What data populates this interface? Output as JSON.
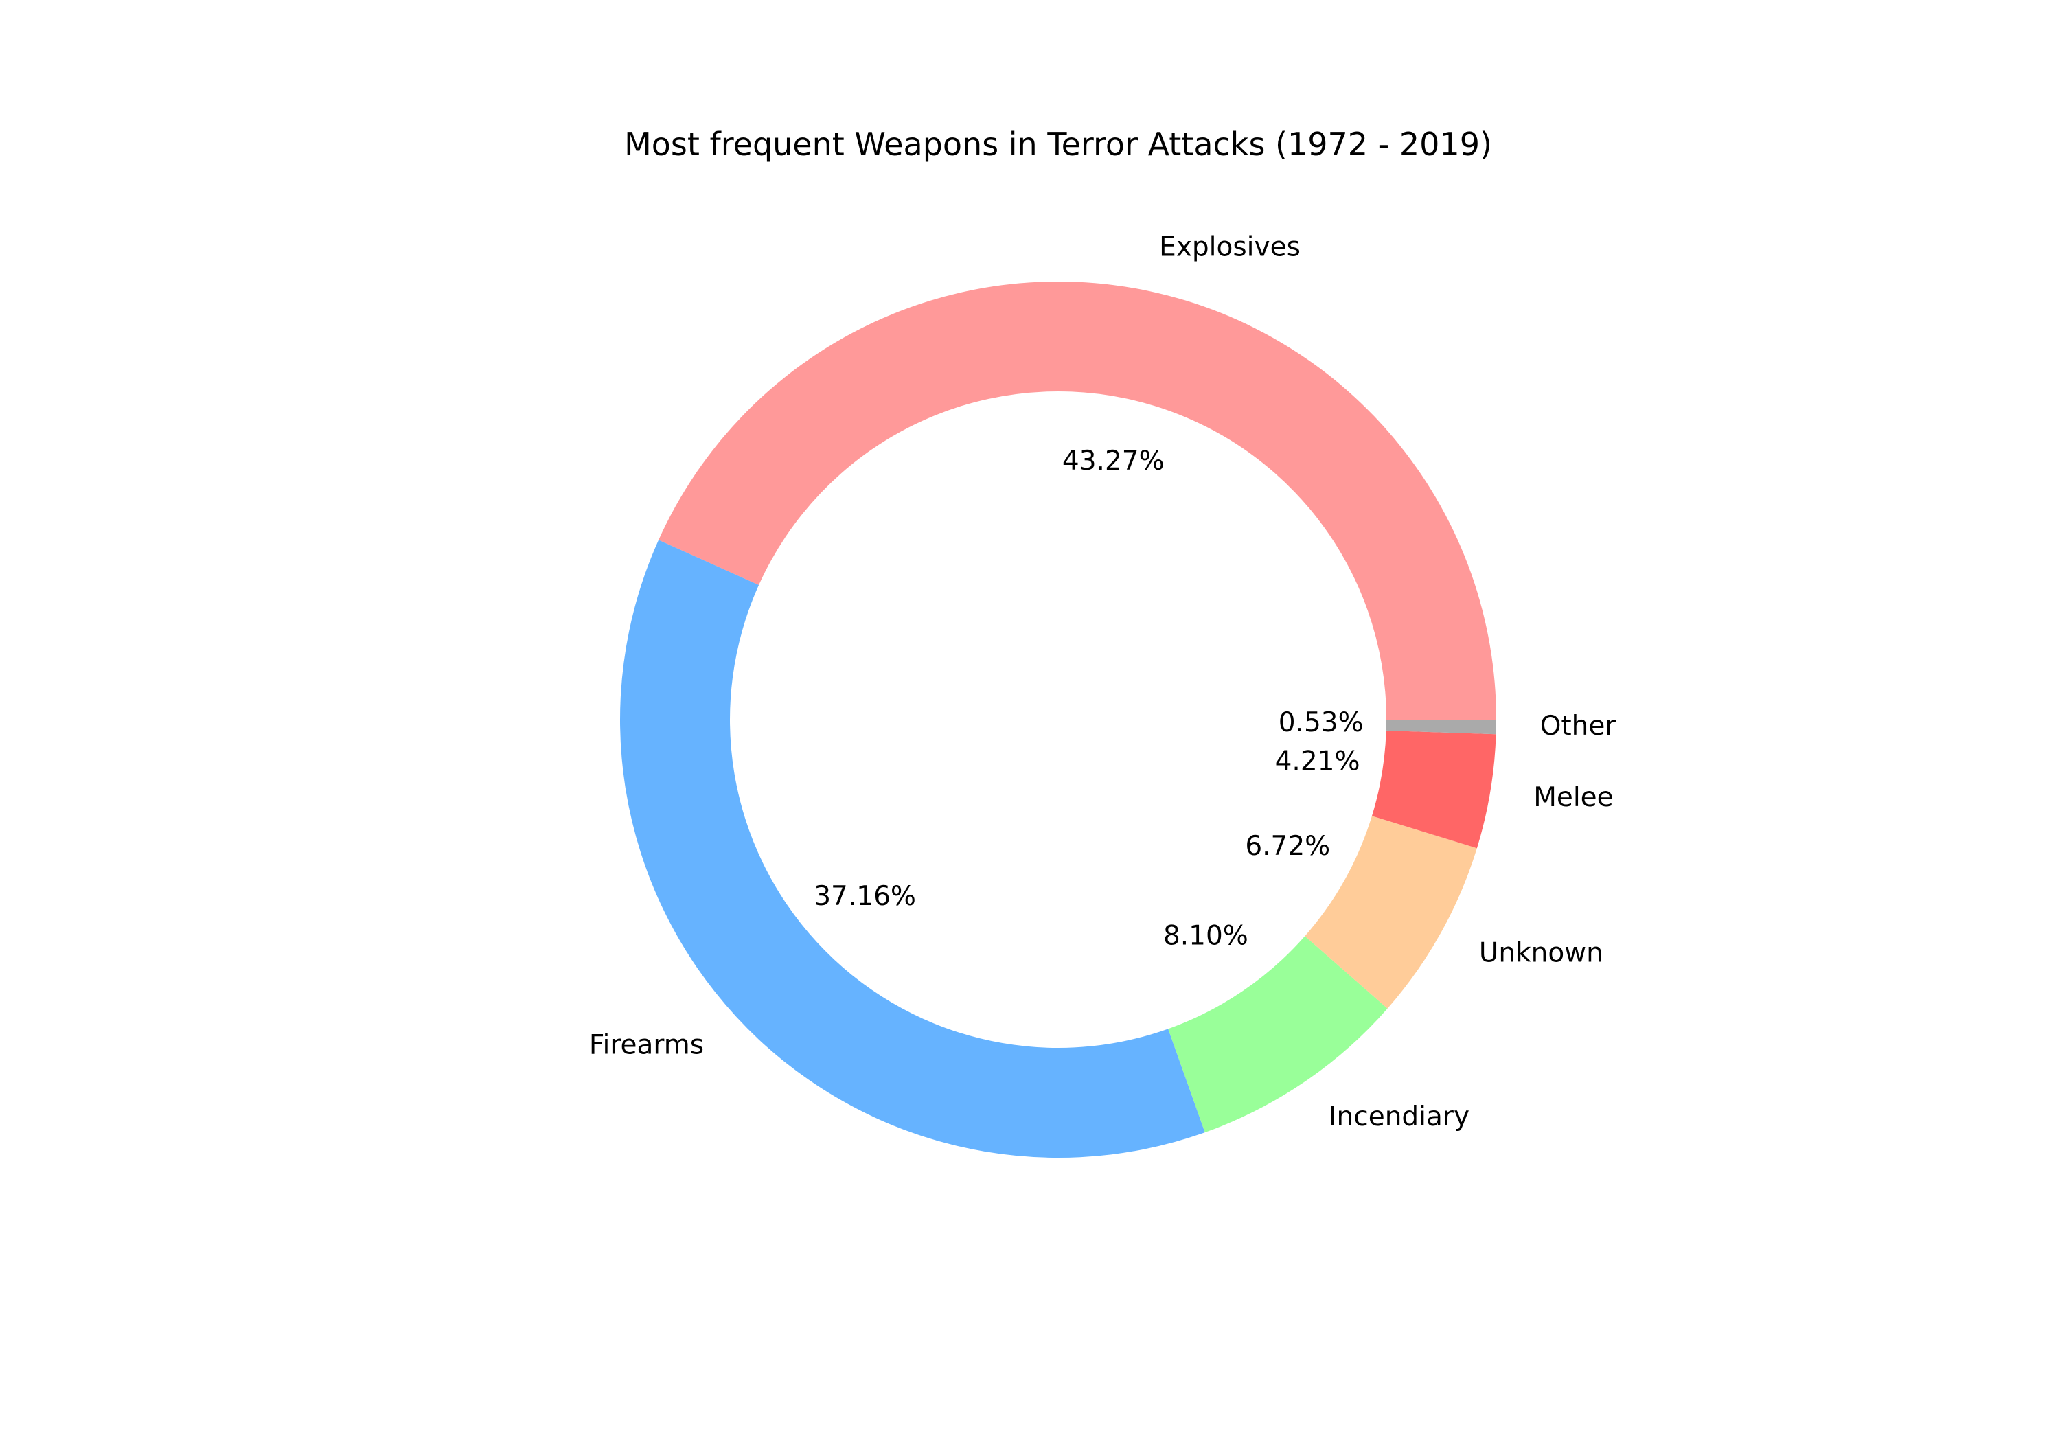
{
  "chart_data": {
    "type": "pie",
    "style": "donut",
    "title": "Most frequent Weapons in Terror Attacks (1972 - 2019)",
    "start_angle_deg": 0,
    "direction": "counterclockwise",
    "slices": [
      {
        "label": "Explosives",
        "value": 43.27,
        "pct_text": "43.27%",
        "color": "#ff9999"
      },
      {
        "label": "Firearms",
        "value": 37.16,
        "pct_text": "37.16%",
        "color": "#66b3ff"
      },
      {
        "label": "Incendiary",
        "value": 8.1,
        "pct_text": "8.10%",
        "color": "#99ff99"
      },
      {
        "label": "Unknown",
        "value": 6.72,
        "pct_text": "6.72%",
        "color": "#ffcc99"
      },
      {
        "label": "Melee",
        "value": 4.21,
        "pct_text": "4.21%",
        "color": "#ff6666"
      },
      {
        "label": "Other",
        "value": 0.53,
        "pct_text": "0.53%",
        "color": "#aaaaaa"
      }
    ],
    "legend": "none"
  }
}
